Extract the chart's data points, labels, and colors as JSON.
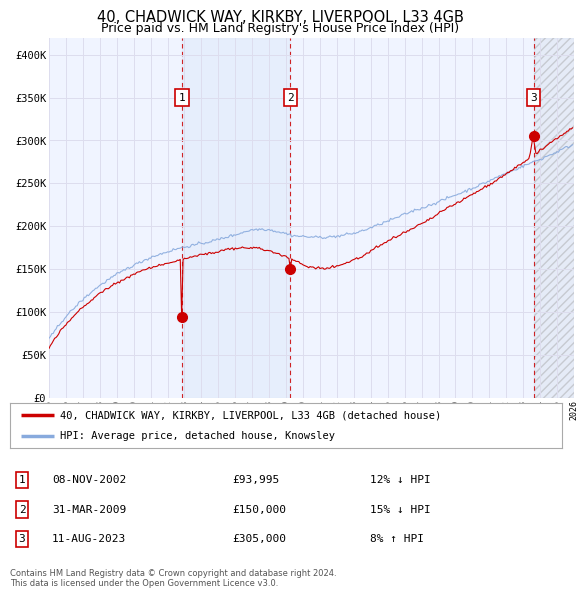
{
  "title": "40, CHADWICK WAY, KIRKBY, LIVERPOOL, L33 4GB",
  "subtitle": "Price paid vs. HM Land Registry's House Price Index (HPI)",
  "ylim": [
    0,
    420000
  ],
  "yticks": [
    0,
    50000,
    100000,
    150000,
    200000,
    250000,
    300000,
    350000,
    400000
  ],
  "ytick_labels": [
    "£0",
    "£50K",
    "£100K",
    "£150K",
    "£200K",
    "£250K",
    "£300K",
    "£350K",
    "£400K"
  ],
  "xstart_year": 1995,
  "xend_year": 2026,
  "sale_year_floats": [
    2002.86,
    2009.25,
    2023.61
  ],
  "sale_prices": [
    93995,
    150000,
    305000
  ],
  "sale_labels": [
    "1",
    "2",
    "3"
  ],
  "sale_info": [
    {
      "label": "1",
      "date": "08-NOV-2002",
      "price": "£93,995",
      "hpi": "12% ↓ HPI"
    },
    {
      "label": "2",
      "date": "31-MAR-2009",
      "price": "£150,000",
      "hpi": "15% ↓ HPI"
    },
    {
      "label": "3",
      "date": "11-AUG-2023",
      "price": "£305,000",
      "hpi": "8% ↑ HPI"
    }
  ],
  "property_line_color": "#cc0000",
  "hpi_line_color": "#88aadd",
  "vline_color": "#cc0000",
  "background_color": "#ffffff",
  "plot_bg_color": "#f0f4ff",
  "grid_color": "#ddddee",
  "shade_color": "#ccddf5",
  "legend_property": "40, CHADWICK WAY, KIRKBY, LIVERPOOL, L33 4GB (detached house)",
  "legend_hpi": "HPI: Average price, detached house, Knowsley",
  "footer": "Contains HM Land Registry data © Crown copyright and database right 2024.\nThis data is licensed under the Open Government Licence v3.0.",
  "title_fontsize": 10.5,
  "subtitle_fontsize": 9,
  "tick_fontsize": 7.5
}
